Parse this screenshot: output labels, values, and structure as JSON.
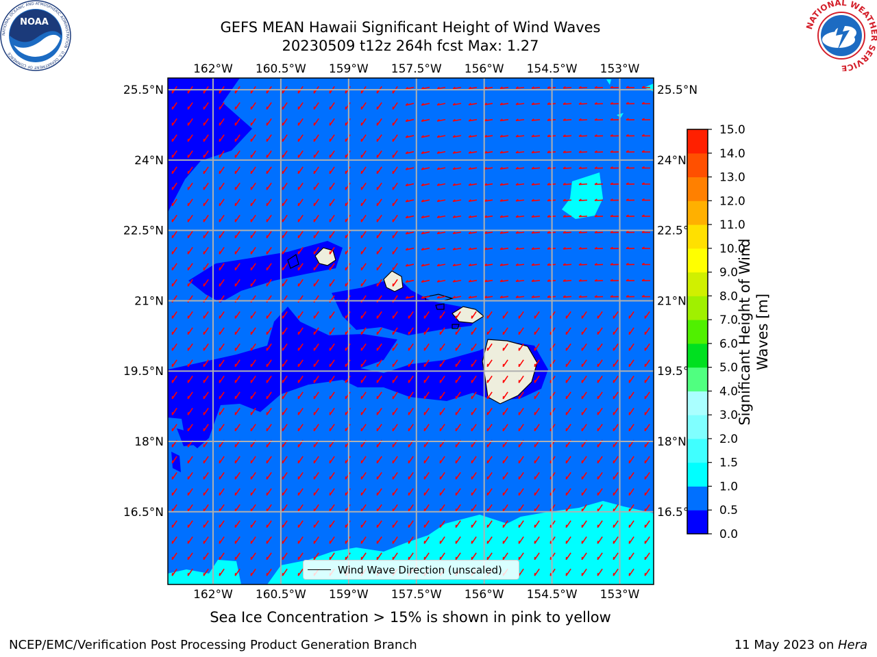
{
  "title_line1": "GEFS MEAN Hawaii Significant Height of Wind Waves",
  "title_line2": "20230509 t12z 264h fcst   Max: 1.27",
  "logos": {
    "noaa_text": "NOAA",
    "noaa_ring": "NATIONAL OCEANIC AND ATMOSPHERIC ADMINISTRATION · U.S. DEPARTMENT OF COMMERCE",
    "nws_ring": "NATIONAL WEATHER SERVICE"
  },
  "axes": {
    "lon_ticks": [
      "162°W",
      "160.5°W",
      "159°W",
      "157.5°W",
      "156°W",
      "154.5°W",
      "153°W"
    ],
    "lat_ticks": [
      "25.5°N",
      "24°N",
      "22.5°N",
      "21°N",
      "19.5°N",
      "18°N",
      "16.5°N"
    ],
    "lon_values": [
      -162,
      -160.5,
      -159,
      -157.5,
      -156,
      -154.5,
      -153
    ],
    "lat_values": [
      25.5,
      24,
      22.5,
      21,
      19.5,
      18,
      16.5
    ],
    "lon_range": [
      -163,
      -152.25
    ],
    "lat_range": [
      14.95,
      25.75
    ],
    "grid": true
  },
  "colorbar": {
    "label": "Significant Height of Wind Waves [m]",
    "ticks": [
      "0.0",
      "0.5",
      "1.0",
      "1.5",
      "2.0",
      "3.0",
      "4.0",
      "5.0",
      "6.0",
      "7.0",
      "8.0",
      "9.0",
      "10.0",
      "11.0",
      "12.0",
      "13.0",
      "14.0",
      "15.0"
    ],
    "colors": [
      "#0000ff",
      "#0070ff",
      "#00ffff",
      "#40ffff",
      "#80ffff",
      "#aaffff",
      "#50ff80",
      "#00e020",
      "#50f000",
      "#a0f000",
      "#d0f000",
      "#ffff00",
      "#ffe000",
      "#ffb000",
      "#ff8000",
      "#ff5000",
      "#ff2000"
    ]
  },
  "legend": {
    "label": "Wind Wave Direction (unscaled)"
  },
  "colors": {
    "ocean_mid": "#0070ff",
    "ocean_low": "#0000ff",
    "ocean_high": "#00ffff",
    "land": "#eeeedd",
    "arrow": "#ff0000"
  },
  "caption": "Sea Ice Concentration > 15% is shown in pink to yellow",
  "footer_left": "NCEP/EMC/Verification Post Processing Product Generation Branch",
  "footer_right_prefix": "11 May 2023 on ",
  "footer_right_machine": "Hera"
}
